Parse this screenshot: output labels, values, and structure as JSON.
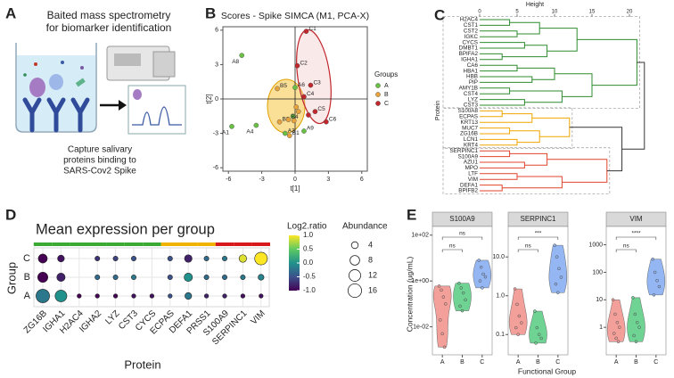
{
  "panel_labels": [
    "A",
    "B",
    "C",
    "D",
    "E"
  ],
  "diagram": {
    "title_lines": [
      "Baited mass spectrometry",
      "for biomarker identification"
    ],
    "caption_lines": [
      "Capture salivary",
      "proteins binding to",
      "SARS-Cov2 Spike"
    ]
  },
  "chart_data": [
    {
      "type": "scatter",
      "title": "Scores - Spike SIMCA (M1, PCA-X)",
      "xlabel": "t[1]",
      "ylabel": "t[2]",
      "xlim": [
        -6.5,
        6.5
      ],
      "ylim": [
        -6.3,
        6.3
      ],
      "xticks": [
        -6,
        -3,
        0,
        3,
        6
      ],
      "yticks": [
        -6,
        -3,
        0,
        3,
        6
      ],
      "zero_lines": true,
      "legend_title": "Groups",
      "legend": "right",
      "series": [
        {
          "name": "A",
          "color": "#6abf45",
          "x": [
            -4.8,
            -5.7,
            -3.5,
            0,
            -0.9,
            0.8,
            -0.2
          ],
          "values": [
            3.8,
            -2.4,
            -2.3,
            1.0,
            -3.0,
            -2.8,
            -1.5
          ],
          "labels": [
            "A8",
            "A1",
            "A4",
            "A6",
            "A3",
            "A9",
            null
          ]
        },
        {
          "name": "B",
          "color": "#e8a33d",
          "x": [
            -1.6,
            -1.4,
            -0.6,
            -0.5,
            0.3,
            -0.1,
            0.1
          ],
          "values": [
            0.9,
            -2.0,
            -1.8,
            -3.2,
            -1.1,
            -1.9,
            -0.7
          ],
          "labels": [
            "B5",
            "B3",
            "B4",
            "B1",
            null,
            null,
            null
          ]
        },
        {
          "name": "C",
          "color": "#c1272d",
          "x": [
            1.0,
            0.2,
            1.4,
            0.8,
            1.8,
            2.8,
            1.2
          ],
          "values": [
            5.9,
            2.9,
            1.2,
            0.2,
            -1.1,
            -2.0,
            -1.4
          ],
          "labels": [
            "C1",
            "C2",
            "C3",
            "C4",
            "C5",
            "C6",
            null
          ]
        }
      ]
    },
    {
      "type": "dendrogram",
      "xlabel": "Height",
      "ylabel": "Protein",
      "xlim": [
        0,
        22.5
      ],
      "xticks": [
        0,
        5,
        10,
        15,
        20
      ],
      "tree": {
        "h": 22,
        "c": [
          {
            "h": 21,
            "color": "#2e8b2e",
            "c": [
              {
                "h": 13,
                "c": [
                  {
                    "h": 8,
                    "c": [
                      {
                        "h": 4,
                        "c": [
                          "H2AC4",
                          "CST1"
                        ]
                      },
                      {
                        "h": 5,
                        "c": [
                          "CST2",
                          "IGKC"
                        ]
                      }
                    ]
                  },
                  {
                    "h": 9,
                    "c": [
                      {
                        "h": 6,
                        "c": [
                          "CYCS",
                          "DMBT1"
                        ]
                      },
                      {
                        "h": 3,
                        "c": [
                          "BPIFA2",
                          "IGHA1"
                        ]
                      }
                    ]
                  }
                ]
              },
              {
                "h": 15,
                "c": [
                  {
                    "h": 10,
                    "c": [
                      {
                        "h": 5,
                        "c": [
                          "CA6",
                          "HBA1"
                        ]
                      },
                      {
                        "h": 7,
                        "c": [
                          "HBB",
                          "PIP"
                        ]
                      }
                    ]
                  },
                  {
                    "h": 11,
                    "c": [
                      {
                        "h": 4,
                        "c": [
                          "AMY1B",
                          "CST4"
                        ]
                      },
                      {
                        "h": 6,
                        "c": [
                          "LYZ",
                          "CST3"
                        ]
                      }
                    ]
                  }
                ]
              }
            ]
          },
          {
            "h": 19,
            "c": [
              {
                "h": 12,
                "color": "#f0a500",
                "c": [
                  {
                    "h": 7,
                    "c": [
                      {
                        "h": 3,
                        "c": [
                          "S100A8",
                          "ECPAS"
                        ]
                      },
                      "KRT13"
                    ]
                  },
                  {
                    "h": 8,
                    "c": [
                      {
                        "h": 4,
                        "c": [
                          "MUC7",
                          "ZG16B"
                        ]
                      },
                      {
                        "h": 5,
                        "c": [
                          "LCN1",
                          "KRT4"
                        ]
                      }
                    ]
                  }
                ]
              },
              {
                "h": 17,
                "color": "#e0442c",
                "c": [
                  {
                    "h": 9,
                    "c": [
                      {
                        "h": 4,
                        "c": [
                          "SERPINC1",
                          "S100A9"
                        ]
                      },
                      {
                        "h": 6,
                        "c": [
                          "AZU1",
                          "MPO"
                        ]
                      }
                    ]
                  },
                  {
                    "h": 11,
                    "c": [
                      {
                        "h": 5,
                        "c": [
                          "LTF",
                          "VIM"
                        ]
                      },
                      {
                        "h": 3,
                        "c": [
                          "DEFA1",
                          "BPIFB2"
                        ]
                      }
                    ]
                  }
                ]
              }
            ]
          }
        ]
      }
    },
    {
      "type": "dotplot",
      "title": "Mean expression per group",
      "xlabel": "Protein",
      "ylabel": "Group",
      "categories": [
        "ZG16B",
        "IGHA1",
        "H2AC4",
        "IGHA2",
        "LYZ",
        "CST3",
        "CYCS",
        "ECPAS",
        "DEFA1",
        "PRSS1",
        "S100A9",
        "SERPINC1",
        "VIM"
      ],
      "category_colors": [
        "#3aaa35",
        "#3aaa35",
        "#3aaa35",
        "#3aaa35",
        "#3aaa35",
        "#3aaa35",
        "#3aaa35",
        "#f0b400",
        "#f0b400",
        "#f0b400",
        "#d7191c",
        "#d7191c",
        "#d7191c"
      ],
      "series": [
        {
          "name": "A",
          "values": [
            -0.2,
            0.0,
            -1.0,
            -1.0,
            -1.0,
            -0.9,
            -0.9,
            -0.5,
            -0.2,
            -0.8,
            -0.8,
            -0.9,
            -0.9
          ],
          "sizes": [
            16,
            12,
            1.5,
            1.5,
            1.5,
            1.5,
            1.5,
            1.5,
            4,
            1.5,
            1.5,
            1.5,
            1.5
          ]
        },
        {
          "name": "B",
          "values": [
            -1.0,
            -0.8,
            null,
            -0.3,
            -0.3,
            -0.2,
            null,
            -0.5,
            0.0,
            -0.3,
            -0.3,
            -0.2,
            -0.1
          ],
          "sizes": [
            9,
            6,
            null,
            2,
            2,
            2,
            null,
            2,
            6,
            2,
            2,
            2,
            3
          ]
        },
        {
          "name": "C",
          "values": [
            -1.0,
            -0.9,
            null,
            -0.7,
            -0.6,
            -0.5,
            null,
            -0.5,
            -0.8,
            -0.3,
            -0.2,
            0.9,
            1.0
          ],
          "sizes": [
            7,
            4,
            null,
            2,
            2,
            2,
            null,
            2,
            5,
            2,
            2,
            5,
            14
          ]
        }
      ],
      "color_title": "Log2.ratio",
      "clim": [
        -1,
        1
      ],
      "cticks": [
        {
          "value": 1,
          "label": "1.0"
        },
        0.5,
        {
          "value": 0,
          "label": "0.0"
        },
        -0.5,
        {
          "value": -1,
          "label": "-1.0"
        }
      ],
      "colormap": [
        "#440154",
        "#3b528b",
        "#21918c",
        "#5ec962",
        "#fde725"
      ],
      "size_title": "Abundance",
      "size_legend": [
        4,
        8,
        12,
        16
      ]
    },
    {
      "type": "violin",
      "title": "S100A9",
      "log": true,
      "ylabel": "Concentration (ug/mL)",
      "ylim": [
        0.0006,
        200
      ],
      "yticks": [
        {
          "value": 0.01,
          "label": "1e-02"
        },
        {
          "value": 1,
          "label": "1e+00"
        },
        {
          "value": 100,
          "label": "1e+02"
        }
      ],
      "categories": [
        "A",
        "B",
        "C"
      ],
      "series": [
        {
          "color": "#f4a09a",
          "values": [
            0.6,
            0.4,
            0.2,
            0.1,
            0.02,
            0.005,
            0.0013
          ]
        },
        {
          "color": "#6fd394",
          "values": [
            0.8,
            0.5,
            0.3,
            0.15,
            0.08,
            0.05
          ]
        },
        {
          "color": "#94b6f2",
          "values": [
            8,
            4,
            2,
            1.5,
            1,
            0.5
          ]
        }
      ],
      "comparisons": [
        {
          "groups": [
            "A",
            "B"
          ],
          "label": "ns"
        },
        {
          "groups": [
            "A",
            "C"
          ],
          "label": "ns"
        }
      ]
    },
    {
      "type": "violin",
      "title": "SERPINC1",
      "log": true,
      "xlabel": "Functional Group",
      "ylim": [
        0.03,
        55
      ],
      "yticks": [
        0.1,
        {
          "value": 1,
          "label": "1.0"
        },
        {
          "value": 10,
          "label": "10.0"
        }
      ],
      "categories": [
        "A",
        "B",
        "C"
      ],
      "series": [
        {
          "color": "#f4a09a",
          "values": [
            1.5,
            0.6,
            0.3,
            0.2,
            0.15,
            0.1
          ]
        },
        {
          "color": "#6fd394",
          "values": [
            0.4,
            0.15,
            0.1,
            0.08,
            0.06
          ]
        },
        {
          "color": "#94b6f2",
          "values": [
            20,
            10,
            5,
            3,
            2,
            1.2
          ]
        }
      ],
      "comparisons": [
        {
          "groups": [
            "A",
            "B"
          ],
          "label": "ns"
        },
        {
          "groups": [
            "A",
            "C"
          ],
          "label": "***"
        }
      ]
    },
    {
      "type": "violin",
      "title": "VIM",
      "log": true,
      "ylim": [
        0.1,
        4000
      ],
      "yticks": [
        1,
        10,
        100,
        1000
      ],
      "categories": [
        "A",
        "B",
        "C"
      ],
      "series": [
        {
          "color": "#f4a09a",
          "values": [
            10,
            3,
            1.5,
            1,
            0.6,
            0.4,
            0.3
          ]
        },
        {
          "color": "#6fd394",
          "values": [
            12,
            3,
            1.5,
            1,
            0.5,
            0.3
          ]
        },
        {
          "color": "#94b6f2",
          "values": [
            300,
            100,
            50,
            30,
            15
          ]
        }
      ],
      "comparisons": [
        {
          "groups": [
            "A",
            "B"
          ],
          "label": "ns"
        },
        {
          "groups": [
            "A",
            "C"
          ],
          "label": "****"
        }
      ]
    }
  ]
}
